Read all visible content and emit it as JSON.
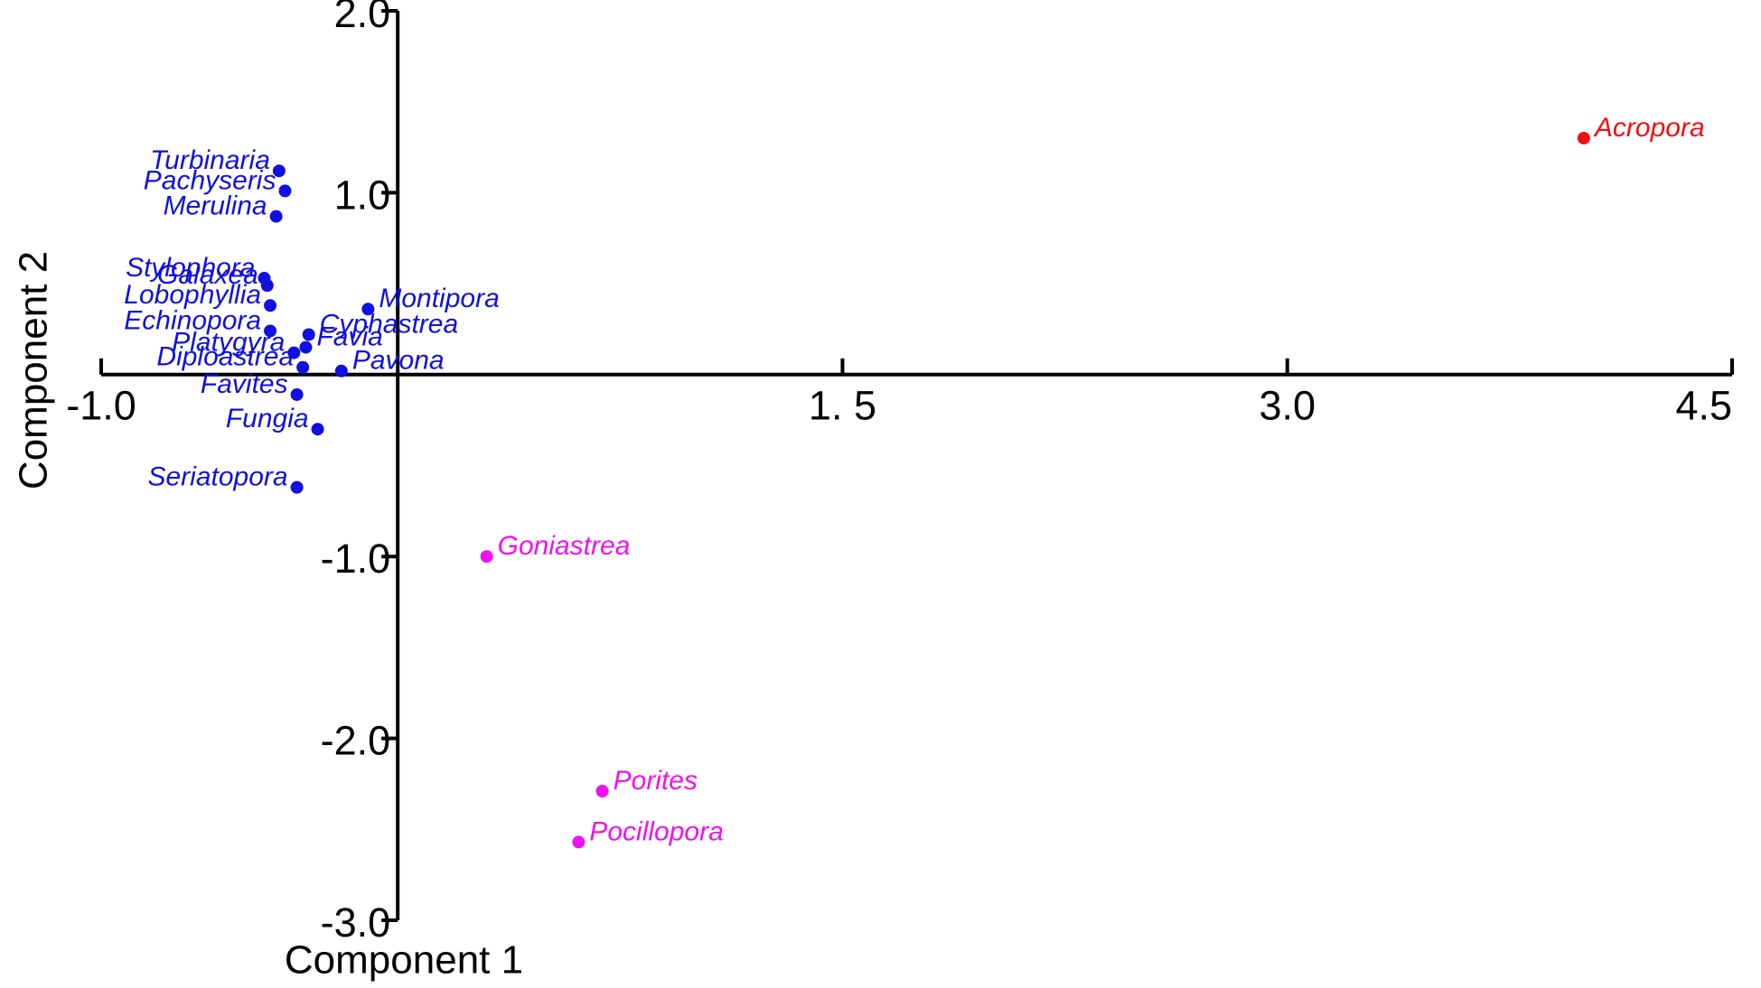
{
  "chart_data": {
    "type": "scatter",
    "x_label": "Component 1",
    "y_label": "Component 2",
    "xlim": [
      -1,
      4.5
    ],
    "ylim": [
      -3,
      2
    ],
    "xticks": [
      {
        "value": -1,
        "label": "-1.0"
      },
      {
        "value": 1.5,
        "label": "1. 5"
      },
      {
        "value": 3,
        "label": "3.0"
      },
      {
        "value": 4.5,
        "label": "4.5"
      }
    ],
    "yticks": [
      {
        "value": 2,
        "label": "2.0"
      },
      {
        "value": 1,
        "label": "1.0"
      },
      {
        "value": -1,
        "label": "-1.0"
      },
      {
        "value": -2,
        "label": "-2.0"
      },
      {
        "value": -3,
        "label": "-3.0"
      }
    ],
    "series": [
      {
        "color": "#1010e0",
        "labels": [
          "Turbinaria",
          "Pachyseris",
          "Merulina",
          "Stylophora",
          "Galaxea",
          "Lobophyllia",
          "Echinopora",
          "Montipora",
          "Cyphastrea",
          "Favia",
          "Platygyra",
          "Diploastrea",
          "Pavona",
          "Favites",
          "Fungia",
          "Seriatopora"
        ],
        "x": [
          -0.4,
          -0.38,
          -0.41,
          -0.45,
          -0.44,
          -0.43,
          -0.43,
          -0.1,
          -0.3,
          -0.31,
          -0.35,
          -0.32,
          -0.19,
          -0.34,
          -0.27,
          -0.34
        ],
        "values": [
          1.12,
          1.01,
          0.87,
          0.53,
          0.49,
          0.38,
          0.24,
          0.36,
          0.22,
          0.15,
          0.12,
          0.04,
          0.02,
          -0.11,
          -0.3,
          -0.62
        ]
      },
      {
        "color": "#f010f0",
        "labels": [
          "Goniastrea",
          "Porites",
          "Pocillopora"
        ],
        "x": [
          0.3,
          0.69,
          0.61
        ],
        "values": [
          -1.0,
          -2.29,
          -2.57
        ]
      },
      {
        "color": "#f01010",
        "labels": [
          "Acropora"
        ],
        "x": [
          4.0
        ],
        "values": [
          1.3
        ]
      }
    ]
  }
}
